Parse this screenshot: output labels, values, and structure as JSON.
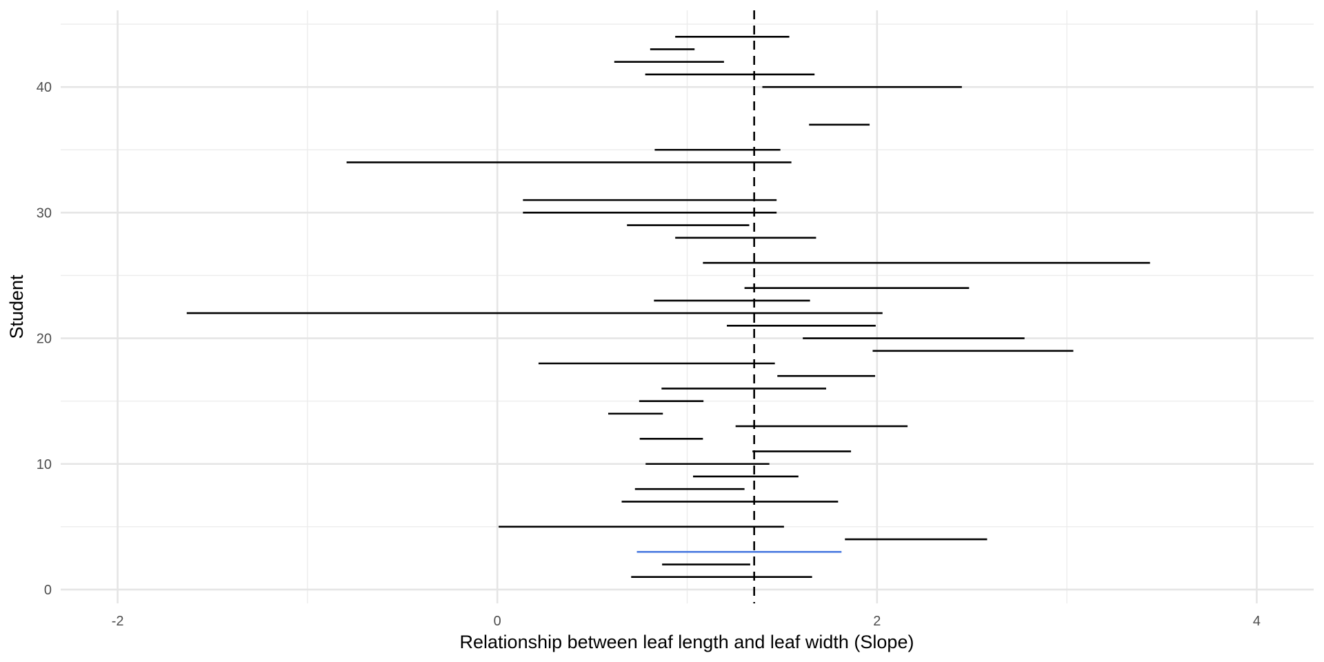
{
  "chart_data": {
    "type": "interval",
    "title": "",
    "xlabel": "Relationship between leaf length and leaf width (Slope)",
    "ylabel": "Student",
    "xlim": [
      -2.3,
      4.3
    ],
    "ylim": [
      -1.1,
      46.1
    ],
    "x_ticks": [
      -2,
      0,
      2,
      4
    ],
    "x_tick_labels": [
      "-2",
      "0",
      "2",
      "4"
    ],
    "x_minor_ticks": [
      -1,
      1,
      3
    ],
    "y_ticks": [
      0,
      10,
      20,
      30,
      40
    ],
    "y_tick_labels": [
      "0",
      "10",
      "20",
      "30",
      "40"
    ],
    "y_minor_ticks": [
      5,
      15,
      25,
      35,
      45
    ],
    "grid": true,
    "reference_line": {
      "x": 1.353,
      "style": "dashed",
      "color": "#000000"
    },
    "default_color": "#000000",
    "highlight_color": "#4a7ae0",
    "series": [
      {
        "student": 1,
        "low": 0.705,
        "high": 1.658,
        "highlight": false
      },
      {
        "student": 2,
        "low": 0.868,
        "high": 1.332,
        "highlight": false
      },
      {
        "student": 3,
        "low": 0.735,
        "high": 1.813,
        "highlight": true
      },
      {
        "student": 4,
        "low": 1.831,
        "high": 2.58,
        "highlight": false
      },
      {
        "student": 5,
        "low": 0.007,
        "high": 1.51,
        "highlight": false
      },
      {
        "student": 7,
        "low": 0.655,
        "high": 1.795,
        "highlight": false
      },
      {
        "student": 8,
        "low": 0.725,
        "high": 1.302,
        "highlight": false
      },
      {
        "student": 9,
        "low": 1.031,
        "high": 1.586,
        "highlight": false
      },
      {
        "student": 10,
        "low": 0.781,
        "high": 1.433,
        "highlight": false
      },
      {
        "student": 11,
        "low": 1.344,
        "high": 1.863,
        "highlight": false
      },
      {
        "student": 12,
        "low": 0.75,
        "high": 1.083,
        "highlight": false
      },
      {
        "student": 13,
        "low": 1.255,
        "high": 2.161,
        "highlight": false
      },
      {
        "student": 14,
        "low": 0.584,
        "high": 0.872,
        "highlight": false
      },
      {
        "student": 15,
        "low": 0.747,
        "high": 1.086,
        "highlight": false
      },
      {
        "student": 16,
        "low": 0.865,
        "high": 1.732,
        "highlight": false
      },
      {
        "student": 17,
        "low": 1.475,
        "high": 1.99,
        "highlight": false
      },
      {
        "student": 18,
        "low": 0.217,
        "high": 1.462,
        "highlight": false
      },
      {
        "student": 19,
        "low": 1.977,
        "high": 3.034,
        "highlight": false
      },
      {
        "student": 20,
        "low": 1.609,
        "high": 2.777,
        "highlight": false
      },
      {
        "student": 21,
        "low": 1.209,
        "high": 1.993,
        "highlight": false
      },
      {
        "student": 22,
        "low": -1.636,
        "high": 2.029,
        "highlight": false
      },
      {
        "student": 23,
        "low": 0.825,
        "high": 1.647,
        "highlight": false
      },
      {
        "student": 24,
        "low": 1.302,
        "high": 2.485,
        "highlight": false
      },
      {
        "student": 26,
        "low": 1.083,
        "high": 3.438,
        "highlight": false
      },
      {
        "student": 28,
        "low": 0.937,
        "high": 1.679,
        "highlight": false
      },
      {
        "student": 29,
        "low": 0.683,
        "high": 1.327,
        "highlight": false
      },
      {
        "student": 30,
        "low": 0.135,
        "high": 1.471,
        "highlight": false
      },
      {
        "student": 31,
        "low": 0.135,
        "high": 1.471,
        "highlight": false
      },
      {
        "student": 34,
        "low": -0.794,
        "high": 1.549,
        "highlight": false
      },
      {
        "student": 35,
        "low": 0.829,
        "high": 1.491,
        "highlight": false
      },
      {
        "student": 37,
        "low": 1.642,
        "high": 1.961,
        "highlight": false
      },
      {
        "student": 40,
        "low": 1.396,
        "high": 2.447,
        "highlight": false
      },
      {
        "student": 41,
        "low": 0.779,
        "high": 1.671,
        "highlight": false
      },
      {
        "student": 42,
        "low": 0.616,
        "high": 1.194,
        "highlight": false
      },
      {
        "student": 43,
        "low": 0.805,
        "high": 1.039,
        "highlight": false
      },
      {
        "student": 44,
        "low": 0.937,
        "high": 1.538,
        "highlight": false
      }
    ]
  }
}
